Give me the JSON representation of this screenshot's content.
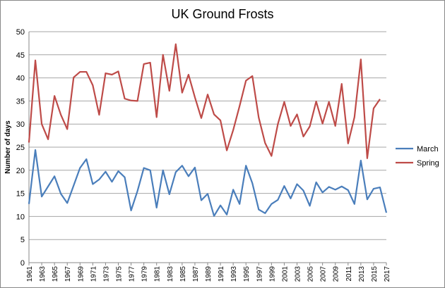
{
  "chart_data": {
    "type": "line",
    "title": "UK Ground Frosts",
    "y_label": "Number of days",
    "x": [
      1961,
      1962,
      1963,
      1964,
      1965,
      1966,
      1967,
      1968,
      1969,
      1970,
      1971,
      1972,
      1973,
      1974,
      1975,
      1976,
      1977,
      1978,
      1979,
      1980,
      1981,
      1982,
      1983,
      1984,
      1985,
      1986,
      1987,
      1988,
      1989,
      1990,
      1991,
      1992,
      1993,
      1994,
      1995,
      1996,
      1997,
      1998,
      1999,
      2000,
      2001,
      2002,
      2003,
      2004,
      2005,
      2006,
      2007,
      2008,
      2009,
      2010,
      2011,
      2012,
      2013,
      2014,
      2015,
      2016,
      2017
    ],
    "xlim": [
      1961,
      2017
    ],
    "xticks": [
      1961,
      1963,
      1965,
      1967,
      1969,
      1971,
      1973,
      1975,
      1977,
      1979,
      1981,
      1983,
      1985,
      1987,
      1989,
      1991,
      1993,
      1995,
      1997,
      1999,
      2001,
      2003,
      2005,
      2007,
      2009,
      2011,
      2013,
      2015,
      2017
    ],
    "ylim": [
      0,
      50
    ],
    "yticks": [
      0,
      5,
      10,
      15,
      20,
      25,
      30,
      35,
      40,
      45,
      50
    ],
    "grid": true,
    "legend": "right",
    "series": [
      {
        "name": "March",
        "color": "#4a7ebb",
        "values": [
          12.7,
          24.4,
          14.3,
          16.5,
          18.7,
          14.9,
          12.9,
          16.7,
          20.5,
          22.4,
          17.0,
          18.0,
          19.7,
          17.5,
          19.8,
          18.5,
          11.3,
          15.5,
          20.5,
          20.0,
          11.9,
          20.0,
          14.8,
          19.6,
          21.0,
          18.7,
          20.6,
          13.5,
          14.9,
          10.1,
          12.4,
          10.4,
          15.8,
          12.7,
          21.0,
          17.2,
          11.5,
          10.7,
          12.7,
          13.6,
          16.6,
          13.9,
          17.0,
          15.6,
          12.3,
          17.4,
          15.2,
          16.4,
          15.8,
          16.5,
          15.7,
          12.7,
          22.1,
          13.7,
          16.0,
          16.3,
          10.8
        ]
      },
      {
        "name": "Spring",
        "color": "#be4b48",
        "values": [
          26.0,
          43.8,
          30.0,
          26.7,
          36.1,
          32.0,
          28.9,
          40.1,
          41.3,
          41.3,
          38.4,
          32.0,
          41.0,
          40.7,
          41.4,
          35.5,
          35.1,
          35.0,
          43.0,
          43.3,
          31.5,
          45.0,
          37.2,
          47.3,
          36.8,
          40.7,
          35.8,
          31.3,
          36.4,
          32.1,
          30.8,
          24.3,
          28.7,
          33.9,
          39.4,
          40.4,
          31.4,
          25.9,
          23.1,
          30.0,
          34.8,
          29.6,
          32.1,
          27.3,
          29.5,
          34.9,
          30.1,
          34.8,
          29.6,
          38.7,
          25.8,
          31.5,
          44.0,
          22.6,
          33.4,
          35.4,
          null
        ]
      }
    ]
  }
}
